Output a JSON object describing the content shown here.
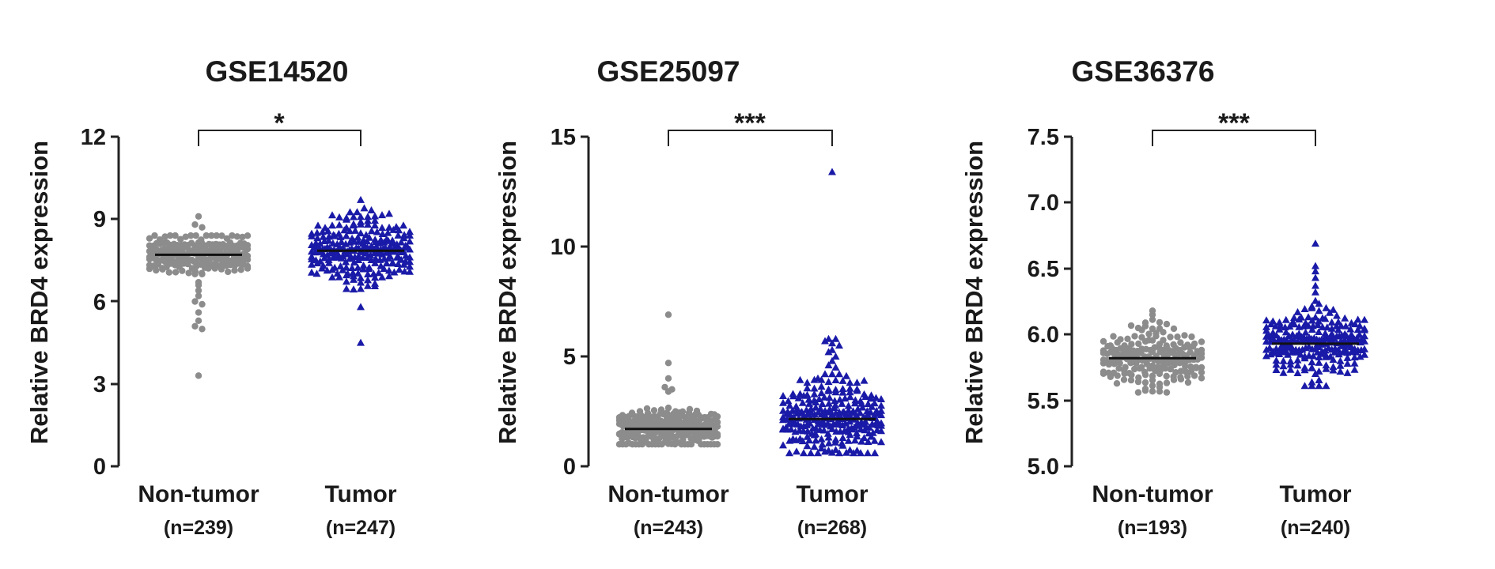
{
  "chart_data": [
    {
      "type": "scatter",
      "title": "GSE14520",
      "ylabel": "Relative BRD4 expression",
      "ylim": [
        0,
        12
      ],
      "yticks": [
        "0",
        "3",
        "6",
        "9",
        "12"
      ],
      "significance": "*",
      "groups": [
        {
          "name": "Non-tumor",
          "n_label": "(n=239)",
          "n": 239,
          "marker": "circle",
          "color": "#8c8c8c",
          "mean": 7.7,
          "sd": 0.35,
          "min": 7.0,
          "max": 8.4,
          "outliers": [
            9.1,
            8.8,
            8.7,
            6.7,
            6.6,
            6.4,
            6.2,
            6.0,
            5.9,
            5.6,
            5.3,
            5.1,
            5.0,
            3.3
          ]
        },
        {
          "name": "Tumor",
          "n_label": "(n=247)",
          "n": 247,
          "marker": "triangle",
          "color": "#1a1aa8",
          "mean": 7.85,
          "sd": 0.65,
          "min": 6.1,
          "max": 9.4,
          "outliers": [
            9.7,
            5.8,
            4.5
          ]
        }
      ]
    },
    {
      "type": "scatter",
      "title": "GSE25097",
      "ylabel": "Relative BRD4 expression",
      "ylim": [
        0,
        15
      ],
      "yticks": [
        "0",
        "5",
        "10",
        "15"
      ],
      "significance": "***",
      "groups": [
        {
          "name": "Non-tumor",
          "n_label": "(n=243)",
          "n": 243,
          "marker": "circle",
          "color": "#8c8c8c",
          "mean": 1.7,
          "sd": 0.45,
          "min": 1.0,
          "max": 3.0,
          "outliers": [
            6.9,
            4.7,
            4.0,
            3.6,
            3.5,
            3.4
          ]
        },
        {
          "name": "Tumor",
          "n_label": "(n=268)",
          "n": 268,
          "marker": "triangle",
          "color": "#1a1aa8",
          "mean": 2.15,
          "sd": 0.9,
          "min": 0.6,
          "max": 4.2,
          "outliers": [
            13.4,
            5.8,
            5.8,
            5.7,
            5.6,
            5.5,
            5.3,
            5.2,
            5.0,
            4.8,
            4.6,
            4.5
          ]
        }
      ]
    },
    {
      "type": "scatter",
      "title": "GSE36376",
      "ylabel": "Relative BRD4 expression",
      "ylim": [
        5.0,
        7.5
      ],
      "yticks": [
        "5.0",
        "5.5",
        "6.0",
        "6.5",
        "7.0",
        "7.5"
      ],
      "significance": "***",
      "groups": [
        {
          "name": "Non-tumor",
          "n_label": "(n=193)",
          "n": 193,
          "marker": "circle",
          "color": "#8c8c8c",
          "mean": 5.82,
          "sd": 0.12,
          "min": 5.56,
          "max": 6.12,
          "outliers": [
            6.18,
            6.15
          ]
        },
        {
          "name": "Tumor",
          "n_label": "(n=240)",
          "n": 240,
          "marker": "triangle",
          "color": "#1a1aa8",
          "mean": 5.93,
          "sd": 0.14,
          "min": 5.61,
          "max": 6.3,
          "outliers": [
            6.69,
            6.52,
            6.48,
            6.43,
            6.37,
            6.32
          ]
        }
      ]
    }
  ]
}
